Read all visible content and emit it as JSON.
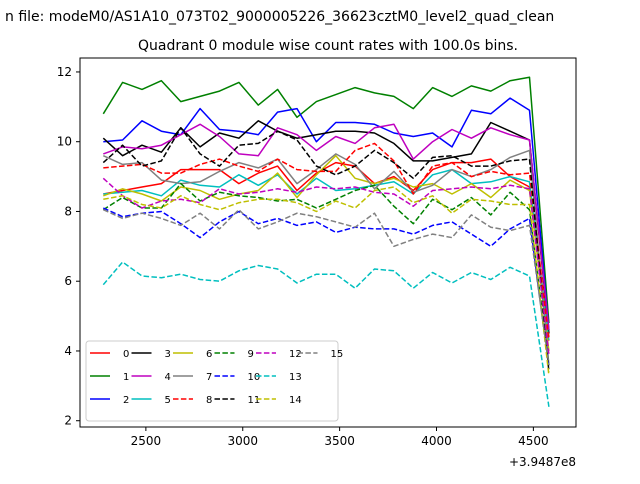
{
  "chart_data": {
    "type": "line",
    "suptitle": "n file: modeM0/AS1A10_073T02_9000005226_36623cztM0_level2_quad_clean",
    "title": "Quadrant 0 module wise count rates with 100.0s bins.",
    "xlabel": "",
    "ylabel": "",
    "x_offset_label": "+3.9487e8",
    "xlim": [
      2160,
      4720
    ],
    "ylim": [
      1.82,
      12.4
    ],
    "xticks": [
      2500,
      3000,
      3500,
      4000,
      4500
    ],
    "yticks": [
      2,
      4,
      6,
      8,
      10,
      12
    ],
    "legend_position": "lower-left",
    "legend_columns": 6,
    "x": [
      2280,
      2380,
      2480,
      2580,
      2680,
      2780,
      2880,
      2980,
      3080,
      3180,
      3280,
      3380,
      3480,
      3580,
      3680,
      3780,
      3880,
      3980,
      4080,
      4180,
      4280,
      4380,
      4480,
      4580
    ],
    "series": [
      {
        "name": "0",
        "color": "#ff0000",
        "dash": "solid",
        "values": [
          8.5,
          8.6,
          8.7,
          8.8,
          9.2,
          9.2,
          9.2,
          8.8,
          9.1,
          9.3,
          8.6,
          9.1,
          9.4,
          9.3,
          8.8,
          9.0,
          8.6,
          9.2,
          9.4,
          9.4,
          9.5,
          9.0,
          8.7,
          4.4
        ]
      },
      {
        "name": "1",
        "color": "#008000",
        "dash": "solid",
        "values": [
          10.8,
          11.7,
          11.5,
          11.75,
          11.15,
          11.3,
          11.45,
          11.7,
          11.05,
          11.5,
          10.7,
          11.15,
          11.35,
          11.55,
          11.4,
          11.3,
          10.95,
          11.55,
          11.3,
          11.6,
          11.45,
          11.75,
          11.85,
          4.8
        ]
      },
      {
        "name": "2",
        "color": "#0000ff",
        "dash": "solid",
        "values": [
          10.0,
          10.05,
          10.6,
          10.3,
          10.2,
          10.95,
          10.35,
          10.3,
          10.2,
          10.85,
          10.95,
          10.0,
          10.55,
          10.55,
          10.5,
          10.25,
          10.15,
          10.25,
          9.85,
          10.9,
          10.8,
          11.25,
          10.9,
          4.6
        ]
      },
      {
        "name": "3",
        "color": "#000000",
        "dash": "solid",
        "values": [
          10.1,
          9.6,
          9.9,
          9.7,
          10.4,
          9.85,
          10.25,
          10.1,
          10.6,
          10.3,
          10.1,
          10.2,
          10.3,
          10.3,
          10.25,
          9.95,
          9.45,
          9.45,
          9.55,
          9.65,
          10.55,
          10.3,
          10.05,
          4.5
        ]
      },
      {
        "name": "4",
        "color": "#bf00bf",
        "dash": "solid",
        "values": [
          9.65,
          9.85,
          9.8,
          9.9,
          10.2,
          10.5,
          10.15,
          9.65,
          9.6,
          10.4,
          10.2,
          9.75,
          10.15,
          9.95,
          10.4,
          10.5,
          9.5,
          10.0,
          10.35,
          10.1,
          10.4,
          10.2,
          10.05,
          4.6
        ]
      },
      {
        "name": "5",
        "color": "#00bfbf",
        "dash": "solid",
        "values": [
          8.5,
          8.55,
          8.6,
          8.45,
          8.9,
          8.75,
          8.7,
          9.05,
          8.75,
          9.05,
          8.5,
          8.95,
          8.6,
          8.65,
          8.75,
          8.85,
          8.5,
          9.05,
          9.2,
          8.8,
          8.85,
          9.0,
          8.85,
          4.3
        ]
      },
      {
        "name": "6",
        "color": "#bfbf00",
        "dash": "solid",
        "values": [
          8.45,
          8.65,
          8.5,
          8.3,
          8.7,
          8.6,
          8.35,
          8.5,
          8.6,
          9.1,
          8.4,
          9.05,
          9.6,
          8.95,
          8.8,
          8.95,
          8.7,
          8.8,
          8.5,
          8.8,
          8.4,
          8.9,
          8.6,
          4.0
        ]
      },
      {
        "name": "7",
        "color": "#808080",
        "dash": "solid",
        "values": [
          9.6,
          9.35,
          9.4,
          8.9,
          8.8,
          8.85,
          9.15,
          9.4,
          9.25,
          9.5,
          8.8,
          9.2,
          9.65,
          9.35,
          8.65,
          9.15,
          8.55,
          8.75,
          9.2,
          9.0,
          9.2,
          9.55,
          9.75,
          3.6
        ]
      },
      {
        "name": "8",
        "color": "#ff0000",
        "dash": "dashed",
        "values": [
          9.25,
          9.3,
          9.35,
          9.1,
          9.1,
          9.35,
          9.5,
          9.3,
          9.15,
          9.5,
          9.2,
          9.15,
          9.15,
          9.75,
          9.95,
          9.45,
          8.5,
          9.3,
          9.4,
          9.0,
          9.15,
          9.05,
          9.1,
          4.3
        ]
      },
      {
        "name": "9",
        "color": "#008000",
        "dash": "dashed",
        "values": [
          8.05,
          8.4,
          8.1,
          8.1,
          8.8,
          8.3,
          8.55,
          8.45,
          8.4,
          8.3,
          8.35,
          8.1,
          8.35,
          8.6,
          8.75,
          8.15,
          7.65,
          8.35,
          8.05,
          8.4,
          7.9,
          8.55,
          8.05,
          3.6
        ]
      },
      {
        "name": "10",
        "color": "#0000ff",
        "dash": "dashed",
        "values": [
          8.1,
          7.85,
          7.95,
          8.0,
          7.65,
          7.25,
          7.7,
          8.0,
          7.65,
          7.8,
          7.6,
          7.7,
          7.4,
          7.55,
          7.5,
          7.5,
          7.35,
          7.6,
          7.7,
          7.35,
          7.0,
          7.5,
          7.8,
          3.5
        ]
      },
      {
        "name": "11",
        "color": "#000000",
        "dash": "dashed",
        "values": [
          9.4,
          9.9,
          9.3,
          9.45,
          10.4,
          9.65,
          9.3,
          9.9,
          9.95,
          10.3,
          10.05,
          9.3,
          9.05,
          9.3,
          9.75,
          9.4,
          8.95,
          9.55,
          9.6,
          9.3,
          9.3,
          9.45,
          9.5,
          3.4
        ]
      },
      {
        "name": "12",
        "color": "#bf00bf",
        "dash": "dashed",
        "values": [
          8.95,
          8.45,
          8.1,
          8.3,
          8.35,
          8.25,
          8.65,
          8.5,
          8.55,
          8.65,
          8.55,
          8.7,
          8.65,
          8.7,
          8.55,
          8.5,
          8.15,
          8.6,
          8.65,
          8.7,
          8.65,
          8.75,
          8.65,
          3.9
        ]
      },
      {
        "name": "13",
        "color": "#00bfbf",
        "dash": "dashed",
        "values": [
          5.9,
          6.55,
          6.15,
          6.1,
          6.2,
          6.05,
          6.0,
          6.3,
          6.45,
          6.35,
          5.95,
          6.2,
          6.2,
          5.8,
          6.35,
          6.3,
          5.8,
          6.25,
          5.95,
          6.25,
          6.05,
          6.4,
          6.15,
          2.4
        ]
      },
      {
        "name": "14",
        "color": "#bfbf00",
        "dash": "dashed",
        "values": [
          8.35,
          8.45,
          8.2,
          8.1,
          8.45,
          8.2,
          8.05,
          8.25,
          8.35,
          8.35,
          8.25,
          8.0,
          8.3,
          8.1,
          8.6,
          8.7,
          8.25,
          8.45,
          7.95,
          8.35,
          8.3,
          8.2,
          8.2,
          3.3
        ]
      },
      {
        "name": "15",
        "color": "#808080",
        "dash": "dashed",
        "values": [
          8.05,
          7.8,
          7.95,
          7.8,
          7.6,
          7.95,
          7.5,
          8.05,
          7.5,
          7.7,
          7.95,
          7.85,
          7.7,
          7.55,
          7.95,
          7.0,
          7.2,
          7.35,
          7.25,
          7.9,
          7.55,
          7.45,
          7.6,
          3.6
        ]
      }
    ]
  }
}
